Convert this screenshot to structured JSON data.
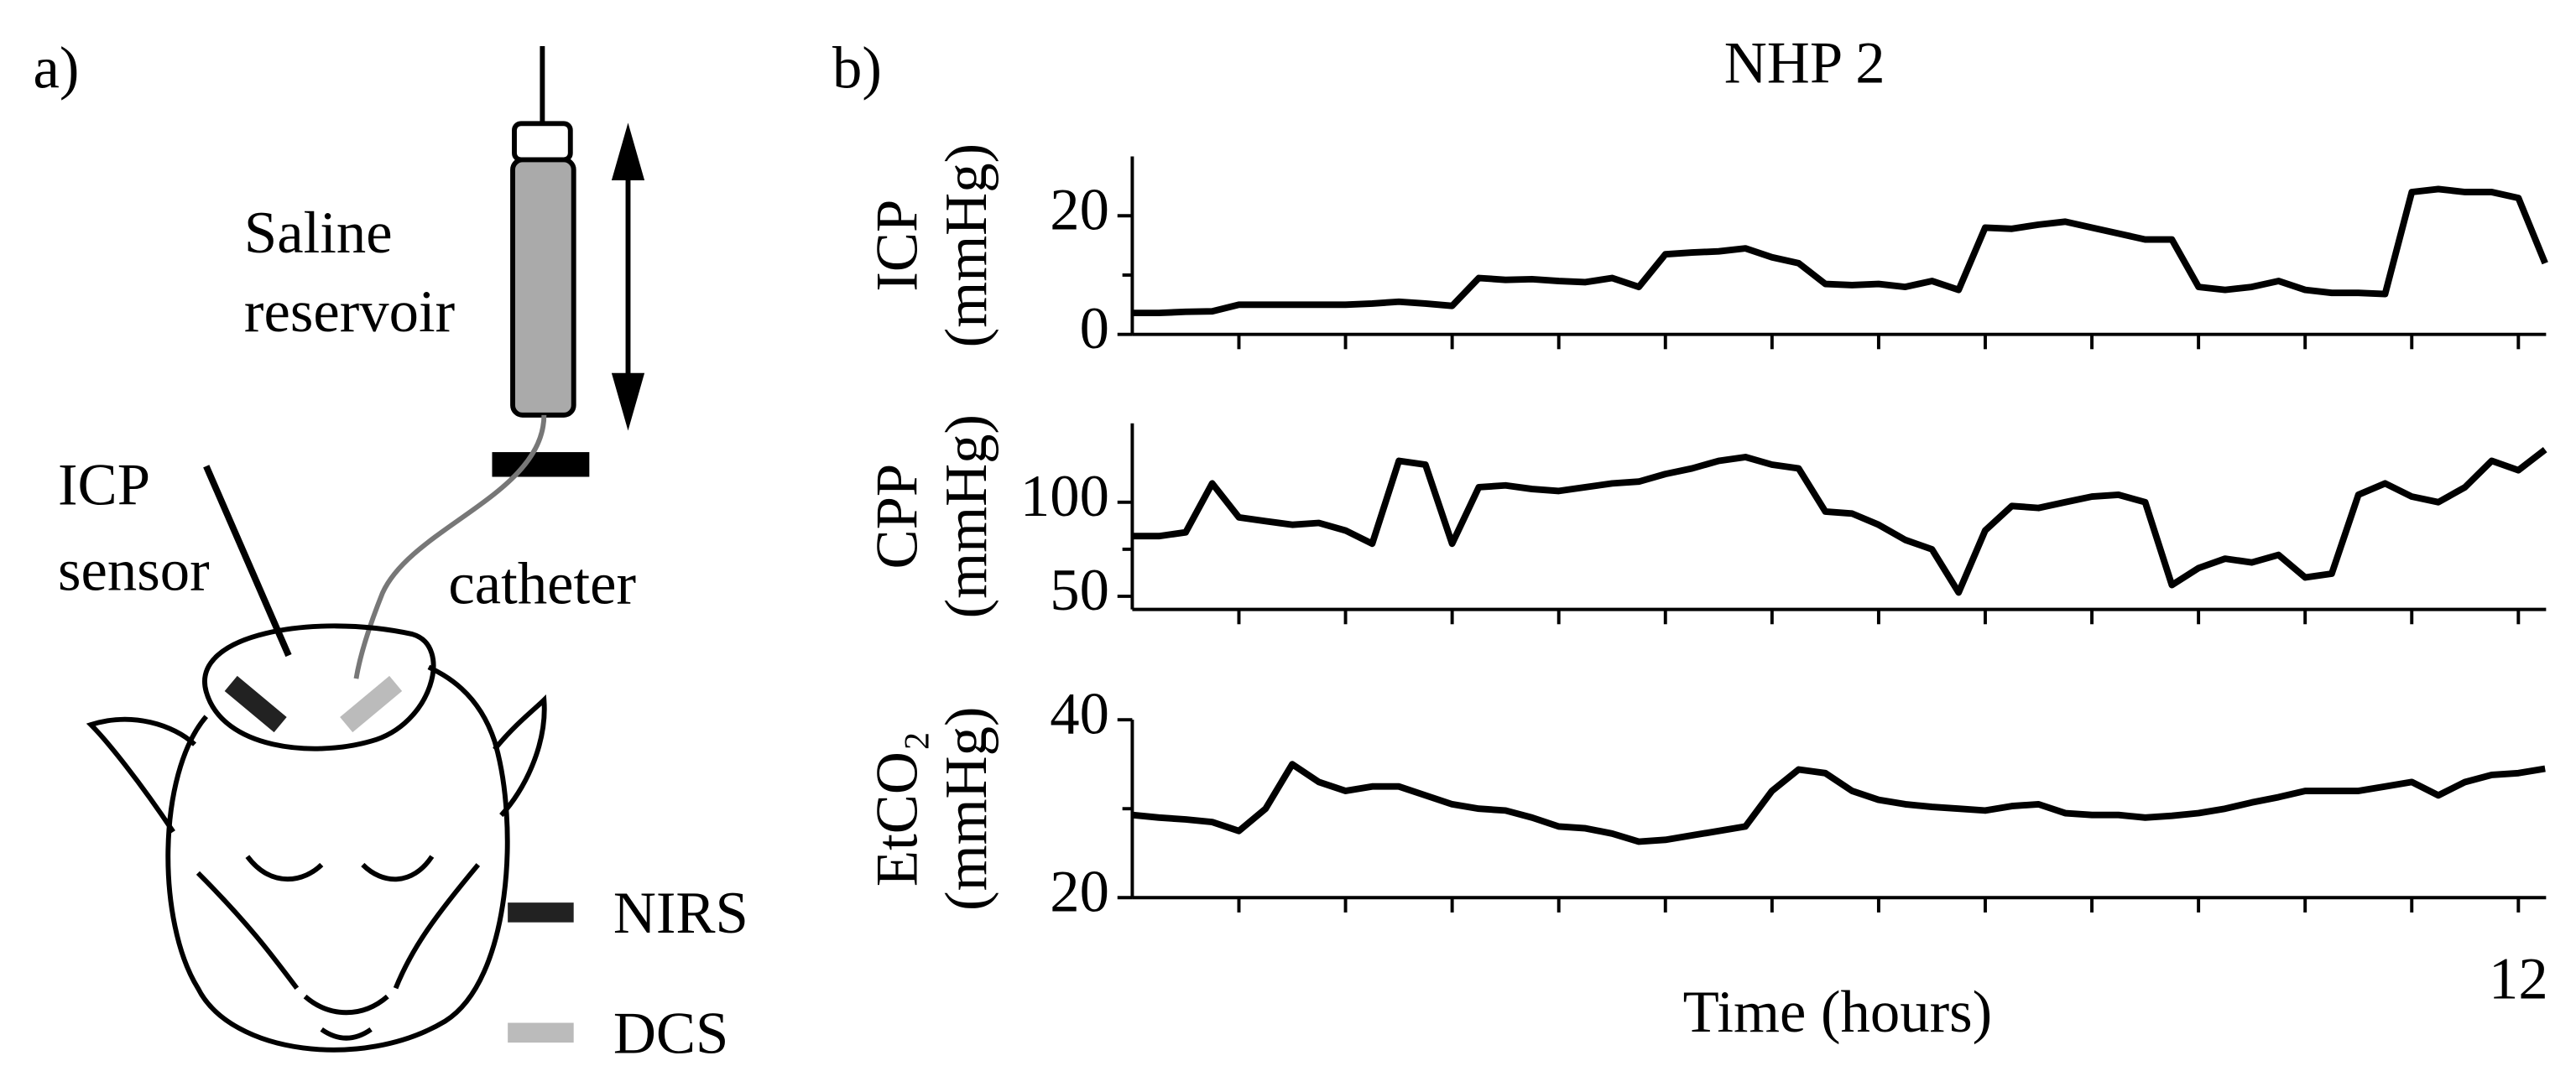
{
  "panel_labels": [
    "a)",
    "b)"
  ],
  "diagram": {
    "reservoir_label": [
      "Saline",
      "reservoir"
    ],
    "sensor_label": [
      "ICP",
      "sensor"
    ],
    "catheter_label": "catheter",
    "legend": [
      {
        "name": "NIRS",
        "color": "#222222"
      },
      {
        "name": "DCS",
        "color": "#bbbbbb"
      }
    ]
  },
  "chart_data": [
    {
      "type": "line",
      "title": "NHP 2",
      "ylabel": [
        "ICP",
        "(mmHg)"
      ],
      "color": "#000000",
      "xlim": [
        -1,
        12.26
      ],
      "xticks": [
        0,
        1,
        2,
        3,
        4,
        5,
        6,
        7,
        8,
        9,
        10,
        11,
        12
      ],
      "ylim": [
        0,
        30
      ],
      "yticks": [
        0,
        20
      ],
      "yminor_ticks": [
        10
      ],
      "x": [
        -1,
        -0.75,
        -0.5,
        -0.25,
        0,
        0.25,
        0.5,
        0.75,
        1,
        1.25,
        1.5,
        1.75,
        2,
        2.25,
        2.5,
        2.75,
        3,
        3.25,
        3.5,
        3.75,
        4,
        4.25,
        4.5,
        4.75,
        5,
        5.25,
        5.5,
        5.75,
        6,
        6.25,
        6.5,
        6.75,
        7,
        7.25,
        7.5,
        7.75,
        8,
        8.25,
        8.5,
        8.75,
        9,
        9.25,
        9.5,
        9.75,
        10,
        10.25,
        10.5,
        10.75,
        11,
        11.25,
        11.5,
        11.75,
        12,
        12.25
      ],
      "values": [
        3.6,
        3.6,
        3.8,
        3.9,
        5,
        5,
        5,
        5,
        5,
        5.2,
        5.5,
        5.2,
        4.8,
        9.5,
        9.2,
        9.3,
        9,
        8.8,
        9.5,
        8,
        13.5,
        13.8,
        14,
        14.5,
        13,
        12,
        8.5,
        8.3,
        8.5,
        8,
        9,
        7.5,
        18,
        17.8,
        18.5,
        19,
        18,
        17,
        16,
        16,
        8,
        7.5,
        8,
        9,
        7.5,
        7,
        7,
        6.8,
        24,
        24.5,
        24,
        24,
        23,
        12
      ]
    },
    {
      "type": "line",
      "ylabel": [
        "CPP",
        "(mmHg)"
      ],
      "color": "#000000",
      "xlim": [
        -1,
        12.26
      ],
      "xticks": [
        0,
        1,
        2,
        3,
        4,
        5,
        6,
        7,
        8,
        9,
        10,
        11,
        12
      ],
      "ylim": [
        43,
        142
      ],
      "yticks": [
        50,
        100
      ],
      "yminor_ticks": [
        75
      ],
      "x": [
        -1,
        -0.75,
        -0.5,
        -0.25,
        0,
        0.25,
        0.5,
        0.75,
        1,
        1.25,
        1.5,
        1.75,
        2,
        2.25,
        2.5,
        2.75,
        3,
        3.25,
        3.5,
        3.75,
        4,
        4.25,
        4.5,
        4.75,
        5,
        5.25,
        5.5,
        5.75,
        6,
        6.25,
        6.5,
        6.75,
        7,
        7.25,
        7.5,
        7.75,
        8,
        8.25,
        8.5,
        8.75,
        9,
        9.25,
        9.5,
        9.75,
        10,
        10.25,
        10.5,
        10.75,
        11,
        11.25,
        11.5,
        11.75,
        12,
        12.25
      ],
      "values": [
        82,
        82,
        84,
        110,
        92,
        90,
        88,
        89,
        85,
        78,
        122,
        120,
        78,
        108,
        109,
        107,
        106,
        108,
        110,
        111,
        115,
        118,
        122,
        124,
        120,
        118,
        95,
        94,
        88,
        80,
        75,
        52,
        85,
        98,
        97,
        100,
        103,
        104,
        100,
        56,
        65,
        70,
        68,
        72,
        60,
        62,
        104,
        110,
        103,
        100,
        108,
        122,
        117,
        128
      ]
    },
    {
      "type": "line",
      "ylabel": [
        "EtCO₂",
        "(mmHg)"
      ],
      "xlabel": "Time (hours)",
      "color": "#000000",
      "xlim": [
        -1,
        12.26
      ],
      "xticks": [
        0,
        1,
        2,
        3,
        4,
        5,
        6,
        7,
        8,
        9,
        10,
        11,
        12
      ],
      "xtick_labeled": [
        12
      ],
      "ylim": [
        20,
        40
      ],
      "yticks": [
        20,
        40
      ],
      "yminor_ticks": [
        30
      ],
      "x": [
        -1,
        -0.75,
        -0.5,
        -0.25,
        0,
        0.25,
        0.5,
        0.75,
        1,
        1.25,
        1.5,
        1.75,
        2,
        2.25,
        2.5,
        2.75,
        3,
        3.25,
        3.5,
        3.75,
        4,
        4.25,
        4.5,
        4.75,
        5,
        5.25,
        5.5,
        5.75,
        6,
        6.25,
        6.5,
        6.75,
        7,
        7.25,
        7.5,
        7.75,
        8,
        8.25,
        8.5,
        8.75,
        9,
        9.25,
        9.5,
        9.75,
        10,
        10.25,
        10.5,
        10.75,
        11,
        11.25,
        11.5,
        11.75,
        12,
        12.25
      ],
      "values": [
        29.3,
        29,
        28.8,
        28.5,
        27.5,
        30,
        35,
        33,
        32,
        32.5,
        32.5,
        31.5,
        30.5,
        30,
        29.8,
        29,
        28,
        27.8,
        27.2,
        26.3,
        26.5,
        27,
        27.5,
        28,
        32,
        34.4,
        34,
        32,
        31,
        30.5,
        30.2,
        30,
        29.8,
        30.3,
        30.5,
        29.5,
        29.3,
        29.3,
        29,
        29.2,
        29.5,
        30,
        30.7,
        31.3,
        32,
        32,
        32,
        32.5,
        33,
        31.5,
        33,
        33.8,
        34,
        34.5
      ]
    }
  ]
}
